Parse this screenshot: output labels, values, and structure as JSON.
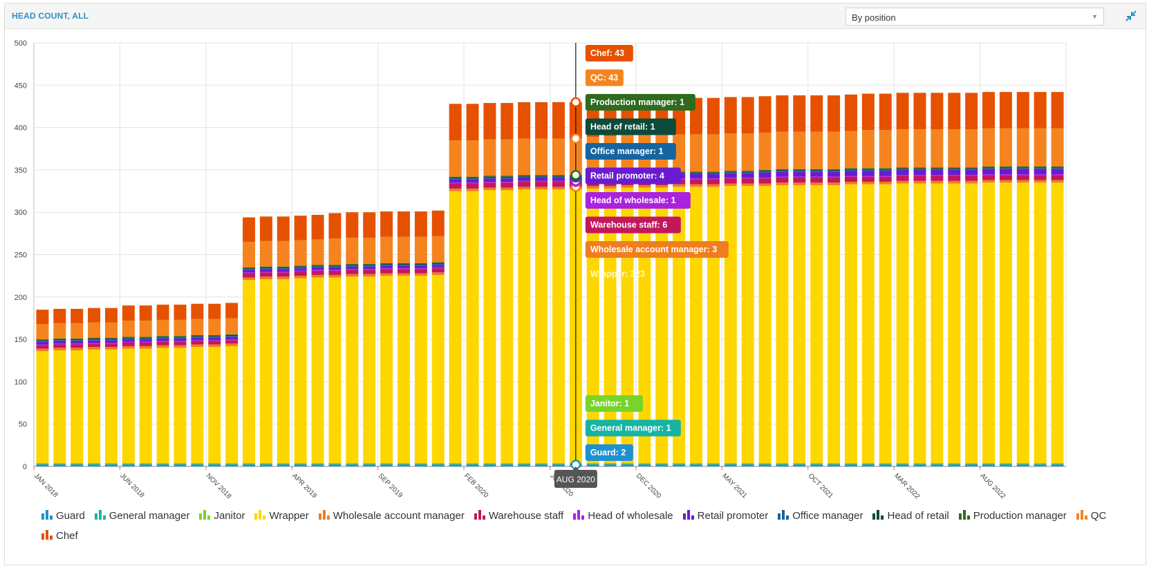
{
  "header": {
    "title": "HEAD COUNT, ALL",
    "select_value": "By position",
    "collapse_icon": "collapse-arrows-icon"
  },
  "tooltip": {
    "month_index": 31,
    "date_label": "AUG 2020",
    "labels": [
      {
        "series": "Chef",
        "text": "Chef: 43"
      },
      {
        "series": "QC",
        "text": "QC: 43"
      },
      {
        "series": "Production manager",
        "text": "Production manager: 1"
      },
      {
        "series": "Head of retail",
        "text": "Head of retail: 1"
      },
      {
        "series": "Office manager",
        "text": "Office manager: 1"
      },
      {
        "series": "Retail promoter",
        "text": "Retail promoter: 4"
      },
      {
        "series": "Head of wholesale",
        "text": "Head of wholesale: 1"
      },
      {
        "series": "Warehouse staff",
        "text": "Warehouse staff: 6"
      },
      {
        "series": "Wholesale account manager",
        "text": "Wholesale account manager: 3"
      },
      {
        "series": "Wrapper",
        "text": "Wrapper: 323"
      },
      {
        "series": "Janitor",
        "text": "Janitor: 1"
      },
      {
        "series": "General manager",
        "text": "General manager: 1"
      },
      {
        "series": "Guard",
        "text": "Guard: 2"
      }
    ]
  },
  "chart_data": {
    "type": "bar",
    "stacked": true,
    "ylim": [
      0,
      500
    ],
    "yticks": [
      0,
      50,
      100,
      150,
      200,
      250,
      300,
      350,
      400,
      450,
      500
    ],
    "grid": true,
    "legend_position": "bottom",
    "xlabel": "",
    "ylabel": "",
    "x_tick_labels": [
      {
        "index": 0,
        "label": "JAN 2018"
      },
      {
        "index": 5,
        "label": "JUN 2018"
      },
      {
        "index": 10,
        "label": "NOV 2018"
      },
      {
        "index": 15,
        "label": "APR 2019"
      },
      {
        "index": 20,
        "label": "SEP 2019"
      },
      {
        "index": 25,
        "label": "FEB 2020"
      },
      {
        "index": 30,
        "label": "JUL 2020"
      },
      {
        "index": 35,
        "label": "DEC 2020"
      },
      {
        "index": 40,
        "label": "MAY 2021"
      },
      {
        "index": 45,
        "label": "OCT 2021"
      },
      {
        "index": 50,
        "label": "MAR 2022"
      },
      {
        "index": 55,
        "label": "AUG 2022"
      }
    ],
    "categories": [
      "JAN 2018",
      "FEB 2018",
      "MAR 2018",
      "APR 2018",
      "MAY 2018",
      "JUN 2018",
      "JUL 2018",
      "AUG 2018",
      "SEP 2018",
      "OCT 2018",
      "NOV 2018",
      "DEC 2018",
      "JAN 2019",
      "FEB 2019",
      "MAR 2019",
      "APR 2019",
      "MAY 2019",
      "JUN 2019",
      "JUL 2019",
      "AUG 2019",
      "SEP 2019",
      "OCT 2019",
      "NOV 2019",
      "DEC 2019",
      "JAN 2020",
      "FEB 2020",
      "MAR 2020",
      "APR 2020",
      "MAY 2020",
      "JUN 2020",
      "JUL 2020",
      "AUG 2020",
      "SEP 2020",
      "OCT 2020",
      "NOV 2020",
      "DEC 2020",
      "JAN 2021",
      "FEB 2021",
      "MAR 2021",
      "APR 2021",
      "MAY 2021",
      "JUN 2021",
      "JUL 2021",
      "AUG 2021",
      "SEP 2021",
      "OCT 2021",
      "NOV 2021",
      "DEC 2021",
      "JAN 2022",
      "FEB 2022",
      "MAR 2022",
      "APR 2022",
      "MAY 2022",
      "JUN 2022",
      "JUL 2022",
      "AUG 2022",
      "SEP 2022",
      "OCT 2022",
      "NOV 2022",
      "DEC 2022"
    ],
    "series": [
      {
        "name": "Guard",
        "color": "#1f91d0",
        "values": [
          2,
          2,
          2,
          2,
          2,
          2,
          2,
          2,
          2,
          2,
          2,
          2,
          2,
          2,
          2,
          2,
          2,
          2,
          2,
          2,
          2,
          2,
          2,
          2,
          2,
          2,
          2,
          2,
          2,
          2,
          2,
          2,
          2,
          2,
          2,
          2,
          2,
          2,
          2,
          2,
          2,
          2,
          2,
          2,
          2,
          2,
          2,
          2,
          2,
          2,
          2,
          2,
          2,
          2,
          2,
          2,
          2,
          2,
          2,
          2
        ]
      },
      {
        "name": "General manager",
        "color": "#17b3a3",
        "values": [
          1,
          1,
          1,
          1,
          1,
          1,
          1,
          1,
          1,
          1,
          1,
          1,
          1,
          1,
          1,
          1,
          1,
          1,
          1,
          1,
          1,
          1,
          1,
          1,
          1,
          1,
          1,
          1,
          1,
          1,
          1,
          1,
          1,
          1,
          1,
          1,
          1,
          1,
          1,
          1,
          1,
          1,
          1,
          1,
          1,
          1,
          1,
          1,
          1,
          1,
          1,
          1,
          1,
          1,
          1,
          1,
          1,
          1,
          1,
          1
        ]
      },
      {
        "name": "Janitor",
        "color": "#77d42a",
        "values": [
          1,
          1,
          1,
          1,
          1,
          1,
          1,
          1,
          1,
          1,
          1,
          1,
          1,
          1,
          1,
          1,
          1,
          1,
          1,
          1,
          1,
          1,
          1,
          1,
          1,
          1,
          1,
          1,
          1,
          1,
          1,
          1,
          1,
          1,
          1,
          1,
          1,
          1,
          1,
          1,
          1,
          1,
          1,
          1,
          1,
          1,
          1,
          1,
          1,
          1,
          1,
          1,
          1,
          1,
          1,
          1,
          1,
          1,
          1,
          1
        ]
      },
      {
        "name": "Wrapper",
        "color": "#ffd700",
        "values": [
          132,
          133,
          133,
          134,
          134,
          135,
          135,
          136,
          136,
          137,
          137,
          138,
          216,
          217,
          217,
          218,
          219,
          219,
          220,
          220,
          221,
          221,
          221,
          222,
          321,
          321,
          322,
          322,
          323,
          323,
          323,
          323,
          324,
          324,
          325,
          325,
          325,
          326,
          326,
          326,
          327,
          327,
          327,
          328,
          328,
          328,
          328,
          329,
          329,
          329,
          330,
          330,
          330,
          330,
          330,
          331,
          331,
          331,
          331,
          331
        ]
      },
      {
        "name": "Wholesale account manager",
        "color": "#f07d1e",
        "values": [
          3,
          3,
          3,
          3,
          3,
          3,
          3,
          3,
          3,
          3,
          3,
          3,
          3,
          3,
          3,
          3,
          3,
          3,
          3,
          3,
          3,
          3,
          3,
          3,
          3,
          3,
          3,
          3,
          3,
          3,
          3,
          3,
          3,
          3,
          3,
          3,
          3,
          3,
          3,
          3,
          3,
          3,
          3,
          3,
          3,
          3,
          3,
          3,
          3,
          3,
          3,
          3,
          3,
          3,
          3,
          3,
          3,
          3,
          3,
          3
        ]
      },
      {
        "name": "Warehouse staff",
        "color": "#c2185b",
        "values": [
          4,
          4,
          4,
          4,
          4,
          4,
          4,
          4,
          4,
          4,
          4,
          4,
          5,
          5,
          5,
          5,
          5,
          5,
          5,
          5,
          5,
          5,
          5,
          5,
          6,
          6,
          6,
          6,
          6,
          6,
          6,
          6,
          6,
          6,
          6,
          6,
          6,
          6,
          6,
          6,
          6,
          6,
          6,
          6,
          6,
          6,
          6,
          6,
          6,
          6,
          6,
          6,
          6,
          6,
          6,
          6,
          6,
          6,
          6,
          6
        ]
      },
      {
        "name": "Head of wholesale",
        "color": "#aa22e0",
        "values": [
          1,
          1,
          1,
          1,
          1,
          1,
          1,
          1,
          1,
          1,
          1,
          1,
          1,
          1,
          1,
          1,
          1,
          1,
          1,
          1,
          1,
          1,
          1,
          1,
          1,
          1,
          1,
          1,
          1,
          1,
          1,
          1,
          1,
          1,
          1,
          1,
          1,
          1,
          1,
          1,
          1,
          1,
          1,
          1,
          1,
          1,
          1,
          1,
          1,
          1,
          1,
          1,
          1,
          1,
          1,
          1,
          1,
          1,
          1,
          1
        ]
      },
      {
        "name": "Retail promoter",
        "color": "#6a1bd0",
        "values": [
          3,
          3,
          3,
          3,
          3,
          3,
          3,
          3,
          3,
          3,
          3,
          3,
          3,
          3,
          3,
          3,
          3,
          3,
          3,
          3,
          3,
          3,
          3,
          3,
          4,
          4,
          4,
          4,
          4,
          4,
          4,
          4,
          4,
          5,
          5,
          5,
          5,
          5,
          5,
          5,
          5,
          5,
          6,
          6,
          6,
          6,
          6,
          6,
          6,
          6,
          6,
          6,
          6,
          6,
          6,
          6,
          6,
          6,
          6,
          6
        ]
      },
      {
        "name": "Office manager",
        "color": "#1565a0",
        "values": [
          1,
          1,
          1,
          1,
          1,
          1,
          1,
          1,
          1,
          1,
          1,
          1,
          1,
          1,
          1,
          1,
          1,
          1,
          1,
          1,
          1,
          1,
          1,
          1,
          1,
          1,
          1,
          1,
          1,
          1,
          1,
          1,
          1,
          1,
          1,
          1,
          1,
          1,
          1,
          1,
          1,
          1,
          1,
          1,
          1,
          1,
          1,
          1,
          1,
          1,
          1,
          1,
          1,
          1,
          1,
          1,
          1,
          1,
          1,
          1
        ]
      },
      {
        "name": "Head of retail",
        "color": "#0d4a3a",
        "values": [
          1,
          1,
          1,
          1,
          1,
          1,
          1,
          1,
          1,
          1,
          1,
          1,
          1,
          1,
          1,
          1,
          1,
          1,
          1,
          1,
          1,
          1,
          1,
          1,
          1,
          1,
          1,
          1,
          1,
          1,
          1,
          1,
          1,
          1,
          1,
          1,
          1,
          1,
          1,
          1,
          1,
          1,
          1,
          1,
          1,
          1,
          1,
          1,
          1,
          1,
          1,
          1,
          1,
          1,
          1,
          1,
          1,
          1,
          1,
          1
        ]
      },
      {
        "name": "Production manager",
        "color": "#2e6b1f",
        "values": [
          1,
          1,
          1,
          1,
          1,
          1,
          1,
          1,
          1,
          1,
          1,
          1,
          1,
          1,
          1,
          1,
          1,
          1,
          1,
          1,
          1,
          1,
          1,
          1,
          1,
          1,
          1,
          1,
          1,
          1,
          1,
          1,
          1,
          1,
          1,
          1,
          1,
          1,
          1,
          1,
          1,
          1,
          1,
          1,
          1,
          1,
          1,
          1,
          1,
          1,
          1,
          1,
          1,
          1,
          1,
          1,
          1,
          1,
          1,
          1
        ]
      },
      {
        "name": "QC",
        "color": "#f5841f",
        "values": [
          18,
          18,
          18,
          18,
          18,
          19,
          19,
          19,
          19,
          19,
          19,
          19,
          30,
          30,
          30,
          30,
          30,
          31,
          31,
          31,
          31,
          31,
          31,
          31,
          43,
          43,
          43,
          43,
          43,
          43,
          43,
          43,
          44,
          44,
          44,
          44,
          44,
          44,
          44,
          44,
          44,
          44,
          44,
          44,
          44,
          44,
          44,
          44,
          45,
          45,
          45,
          45,
          45,
          45,
          45,
          45,
          45,
          45,
          45,
          45
        ]
      },
      {
        "name": "Chef",
        "color": "#e65100",
        "values": [
          17,
          17,
          17,
          17,
          17,
          18,
          18,
          18,
          18,
          18,
          18,
          18,
          29,
          29,
          29,
          29,
          29,
          30,
          30,
          30,
          30,
          30,
          30,
          30,
          43,
          43,
          43,
          43,
          43,
          43,
          43,
          43,
          43,
          43,
          43,
          43,
          43,
          43,
          43,
          43,
          43,
          43,
          43,
          43,
          43,
          43,
          43,
          43,
          43,
          43,
          43,
          43,
          43,
          43,
          43,
          43,
          43,
          43,
          43,
          43
        ]
      }
    ]
  }
}
